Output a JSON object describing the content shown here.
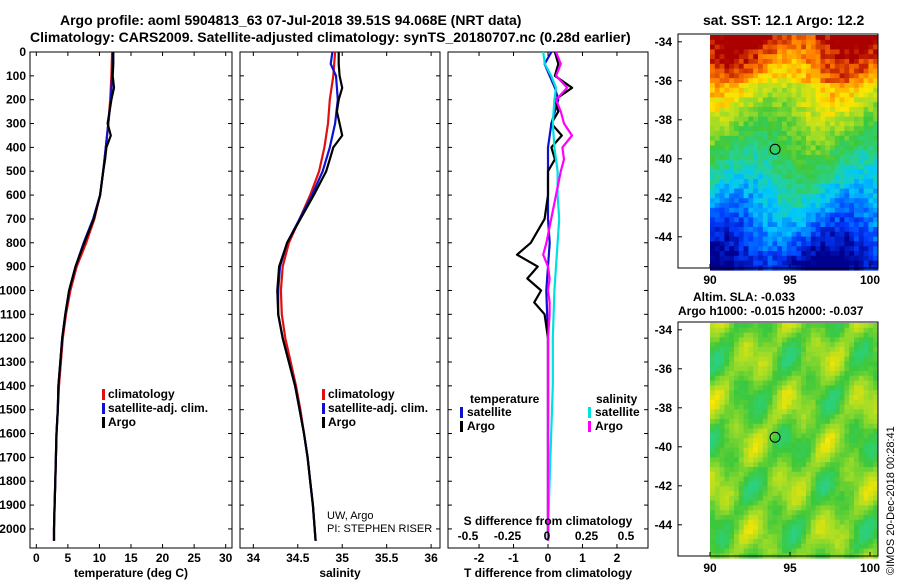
{
  "figure": {
    "title_line1": "Argo profile: aoml 5904813_63 07-Jul-2018 39.51S 94.068E (NRT data)",
    "title_line2": "Climatology: CARS2009. Satellite-adjusted climatology: synTS_20180707.nc (0.28d earlier)",
    "sst_title": "sat. SST: 12.1 Argo: 12.2",
    "sla_title1": "Altim. SLA: -0.033",
    "sla_title2": "Argo h1000: -0.015 h2000: -0.037",
    "timestamp": "©IMOS 20-Dec-2018 00:28:41",
    "colors": {
      "climatology": "#e01010",
      "satellite": "#1010d0",
      "argo": "#000000",
      "sat_salinity": "#00e0e0",
      "argo_salinity": "#ff00ff"
    }
  },
  "chart_data": [
    {
      "id": "temperature",
      "type": "line",
      "xlabel": "temperature (deg C)",
      "xlim": [
        -1,
        31
      ],
      "xticks": [
        0,
        5,
        10,
        15,
        20,
        25,
        30
      ],
      "ylim": [
        2080,
        0
      ],
      "yticks": [
        0,
        100,
        200,
        300,
        400,
        500,
        600,
        700,
        800,
        900,
        1000,
        1100,
        1200,
        1300,
        1400,
        1500,
        1600,
        1700,
        1800,
        1900,
        2000
      ],
      "legend": [
        "climatology",
        "satellite-adj. clim.",
        "Argo"
      ],
      "series": [
        {
          "name": "climatology",
          "color": "#e01010",
          "depth": [
            0,
            100,
            200,
            300,
            400,
            500,
            600,
            700,
            800,
            900,
            1000,
            1100,
            1200,
            1300,
            1400,
            1500,
            1600,
            1700,
            1800,
            1900,
            2000,
            2050
          ],
          "values": [
            12.0,
            11.9,
            11.7,
            11.4,
            11.0,
            10.6,
            10.1,
            9.2,
            7.9,
            6.4,
            5.4,
            4.7,
            4.2,
            3.9,
            3.6,
            3.4,
            3.2,
            3.1,
            3.0,
            2.9,
            2.8,
            2.8
          ]
        },
        {
          "name": "satellite-adj. clim.",
          "color": "#1010d0",
          "depth": [
            0,
            100,
            200,
            300,
            400,
            500,
            600,
            700,
            800,
            900,
            1000,
            1100,
            1200,
            1300,
            1400,
            1500,
            1600,
            1700,
            1800,
            1900,
            2000,
            2050
          ],
          "values": [
            12.1,
            12.0,
            11.8,
            11.4,
            11.0,
            10.6,
            10.1,
            9.0,
            7.5,
            6.2,
            5.2,
            4.6,
            4.1,
            3.8,
            3.5,
            3.4,
            3.2,
            3.1,
            3.0,
            2.9,
            2.8,
            2.8
          ]
        },
        {
          "name": "Argo",
          "color": "#000000",
          "depth": [
            0,
            50,
            100,
            150,
            200,
            250,
            300,
            350,
            400,
            450,
            500,
            600,
            700,
            800,
            900,
            1000,
            1100,
            1200,
            1300,
            1400,
            1500,
            1600,
            1700,
            1800,
            1900,
            2000,
            2050
          ],
          "values": [
            12.2,
            12.2,
            12.1,
            12.3,
            11.9,
            11.6,
            11.3,
            11.8,
            11.1,
            10.9,
            10.6,
            10.1,
            9.1,
            7.6,
            6.2,
            5.2,
            4.6,
            4.1,
            3.8,
            3.5,
            3.4,
            3.2,
            3.1,
            3.0,
            2.9,
            2.8,
            2.8
          ]
        }
      ]
    },
    {
      "id": "salinity",
      "type": "line",
      "xlabel": "salinity",
      "xlim": [
        33.85,
        36.1
      ],
      "xticks": [
        34,
        34.5,
        35,
        35.5,
        36
      ],
      "ylim": [
        2080,
        0
      ],
      "legend": [
        "climatology",
        "satellite-adj. clim.",
        "Argo"
      ],
      "annotation_line1": "UW, Argo",
      "annotation_line2": "PI: STEPHEN RISER",
      "series": [
        {
          "name": "climatology",
          "color": "#e01010",
          "depth": [
            0,
            100,
            200,
            300,
            400,
            500,
            600,
            700,
            800,
            900,
            1000,
            1100,
            1200,
            1300,
            1400,
            1500,
            1600,
            1700,
            1800,
            1900,
            2000,
            2050
          ],
          "values": [
            34.92,
            34.9,
            34.86,
            34.84,
            34.8,
            34.74,
            34.64,
            34.52,
            34.4,
            34.33,
            34.31,
            34.32,
            34.36,
            34.42,
            34.48,
            34.53,
            34.57,
            34.61,
            34.64,
            34.67,
            34.69,
            34.7
          ]
        },
        {
          "name": "satellite-adj. clim.",
          "color": "#1010d0",
          "depth": [
            0,
            50,
            100,
            200,
            300,
            400,
            500,
            600,
            700,
            800,
            900,
            1000,
            1100,
            1200,
            1300,
            1400,
            1500,
            1600,
            1700,
            1800,
            1900,
            2000,
            2050
          ],
          "values": [
            34.89,
            34.87,
            34.93,
            34.95,
            34.92,
            34.86,
            34.78,
            34.66,
            34.52,
            34.38,
            34.3,
            34.28,
            34.28,
            34.33,
            34.4,
            34.47,
            34.52,
            34.57,
            34.61,
            34.64,
            34.67,
            34.69,
            34.7
          ]
        },
        {
          "name": "Argo",
          "color": "#000000",
          "depth": [
            0,
            50,
            100,
            150,
            200,
            250,
            300,
            350,
            400,
            450,
            500,
            600,
            700,
            800,
            900,
            1000,
            1100,
            1200,
            1300,
            1400,
            1500,
            1600,
            1700,
            1800,
            1900,
            2000,
            2050
          ],
          "values": [
            34.96,
            34.96,
            34.97,
            35.0,
            34.96,
            34.94,
            34.97,
            35.0,
            34.9,
            34.86,
            34.82,
            34.68,
            34.53,
            34.38,
            34.29,
            34.27,
            34.28,
            34.33,
            34.4,
            34.47,
            34.52,
            34.57,
            34.61,
            34.64,
            34.67,
            34.69,
            34.7
          ]
        }
      ]
    },
    {
      "id": "difference",
      "type": "line",
      "xlabel": "T difference from climatology",
      "xlabel_top": "S difference from climatology",
      "xlim": [
        -2.9,
        2.9
      ],
      "xticks": [
        -2,
        -1,
        0,
        1,
        2
      ],
      "xticks_top": [
        "-0.5",
        "-0.25",
        "0",
        "0.25",
        "0.5"
      ],
      "ylim": [
        2080,
        0
      ],
      "legend_left_title": "temperature",
      "legend_right_title": "salinity",
      "legend_left": [
        "satellite",
        "Argo"
      ],
      "legend_right": [
        "satellite",
        "Argo"
      ],
      "series": [
        {
          "name": "T satellite",
          "color": "#1010d0",
          "depth": [
            0,
            50,
            100,
            150,
            200,
            300,
            400,
            500,
            600,
            700,
            800,
            900,
            1000,
            1200,
            1400,
            1600,
            1800,
            2000,
            2050
          ],
          "values": [
            0.1,
            -0.1,
            0.05,
            0.2,
            0.3,
            0.1,
            0.0,
            0.0,
            0.0,
            0.0,
            0.05,
            0.0,
            -0.05,
            0.0,
            0.0,
            0.0,
            0.0,
            0.0,
            0.0
          ]
        },
        {
          "name": "T Argo",
          "color": "#000000",
          "depth": [
            0,
            50,
            100,
            150,
            200,
            250,
            300,
            350,
            400,
            450,
            500,
            600,
            700,
            800,
            850,
            900,
            950,
            1000,
            1050,
            1100,
            1200,
            1400,
            1600,
            1800,
            2000,
            2050
          ],
          "values": [
            0.2,
            0.3,
            0.2,
            0.7,
            0.2,
            0.3,
            0.1,
            0.4,
            0.1,
            0.2,
            0.0,
            0.0,
            -0.1,
            -0.5,
            -0.9,
            -0.3,
            -0.6,
            -0.2,
            -0.4,
            -0.1,
            0.0,
            0.0,
            0.0,
            0.0,
            0.0,
            0.0
          ]
        },
        {
          "name": "S satellite",
          "color": "#00e0e0",
          "depth": [
            0,
            50,
            100,
            150,
            200,
            300,
            400,
            500,
            600,
            700,
            800,
            900,
            1000,
            1200,
            1400,
            1600,
            1800,
            2000,
            2050
          ],
          "values": [
            -0.03,
            -0.02,
            0.02,
            0.05,
            0.04,
            0.03,
            0.04,
            0.06,
            0.06,
            0.07,
            0.06,
            0.05,
            0.04,
            0.03,
            0.03,
            0.02,
            0.01,
            0.0,
            0.0
          ]
        },
        {
          "name": "S Argo",
          "color": "#ff00ff",
          "depth": [
            0,
            50,
            100,
            150,
            200,
            250,
            300,
            350,
            400,
            450,
            500,
            600,
            700,
            800,
            850,
            900,
            950,
            1000,
            1050,
            1100,
            1200,
            1400,
            1600,
            1800,
            2000,
            2050
          ],
          "values": [
            0.05,
            0.08,
            0.05,
            0.12,
            0.05,
            0.08,
            0.1,
            0.15,
            0.09,
            0.1,
            0.08,
            0.05,
            0.02,
            -0.01,
            -0.03,
            0.0,
            0.01,
            0.0,
            0.01,
            0.01,
            0.0,
            0.0,
            0.0,
            0.0,
            0.0,
            0.0
          ]
        }
      ]
    },
    {
      "id": "sst_map",
      "type": "heatmap",
      "xlim": [
        88,
        100.5
      ],
      "ylim": [
        -45.6,
        -33.6
      ],
      "xticks": [
        90,
        95,
        100
      ],
      "yticks": [
        -34,
        -36,
        -38,
        -40,
        -42,
        -44
      ],
      "xtick_labels": [
        "90",
        "95",
        "100"
      ],
      "ytick_labels": [
        "-34",
        "-36",
        "-38",
        "-40",
        "-42",
        "-44"
      ],
      "profile_location": [
        94.068,
        -39.51
      ],
      "data_lon_min": 90
    },
    {
      "id": "sla_map",
      "type": "heatmap",
      "xlim": [
        88,
        100.5
      ],
      "ylim": [
        -45.6,
        -33.6
      ],
      "xticks": [
        90,
        95,
        100
      ],
      "yticks": [
        -34,
        -36,
        -38,
        -40,
        -42,
        -44
      ],
      "xtick_labels": [
        "90",
        "95",
        "100"
      ],
      "ytick_labels": [
        "-34",
        "-36",
        "-38",
        "-40",
        "-42",
        "-44"
      ],
      "profile_location": [
        94.068,
        -39.51
      ],
      "data_lon_min": 90
    }
  ]
}
